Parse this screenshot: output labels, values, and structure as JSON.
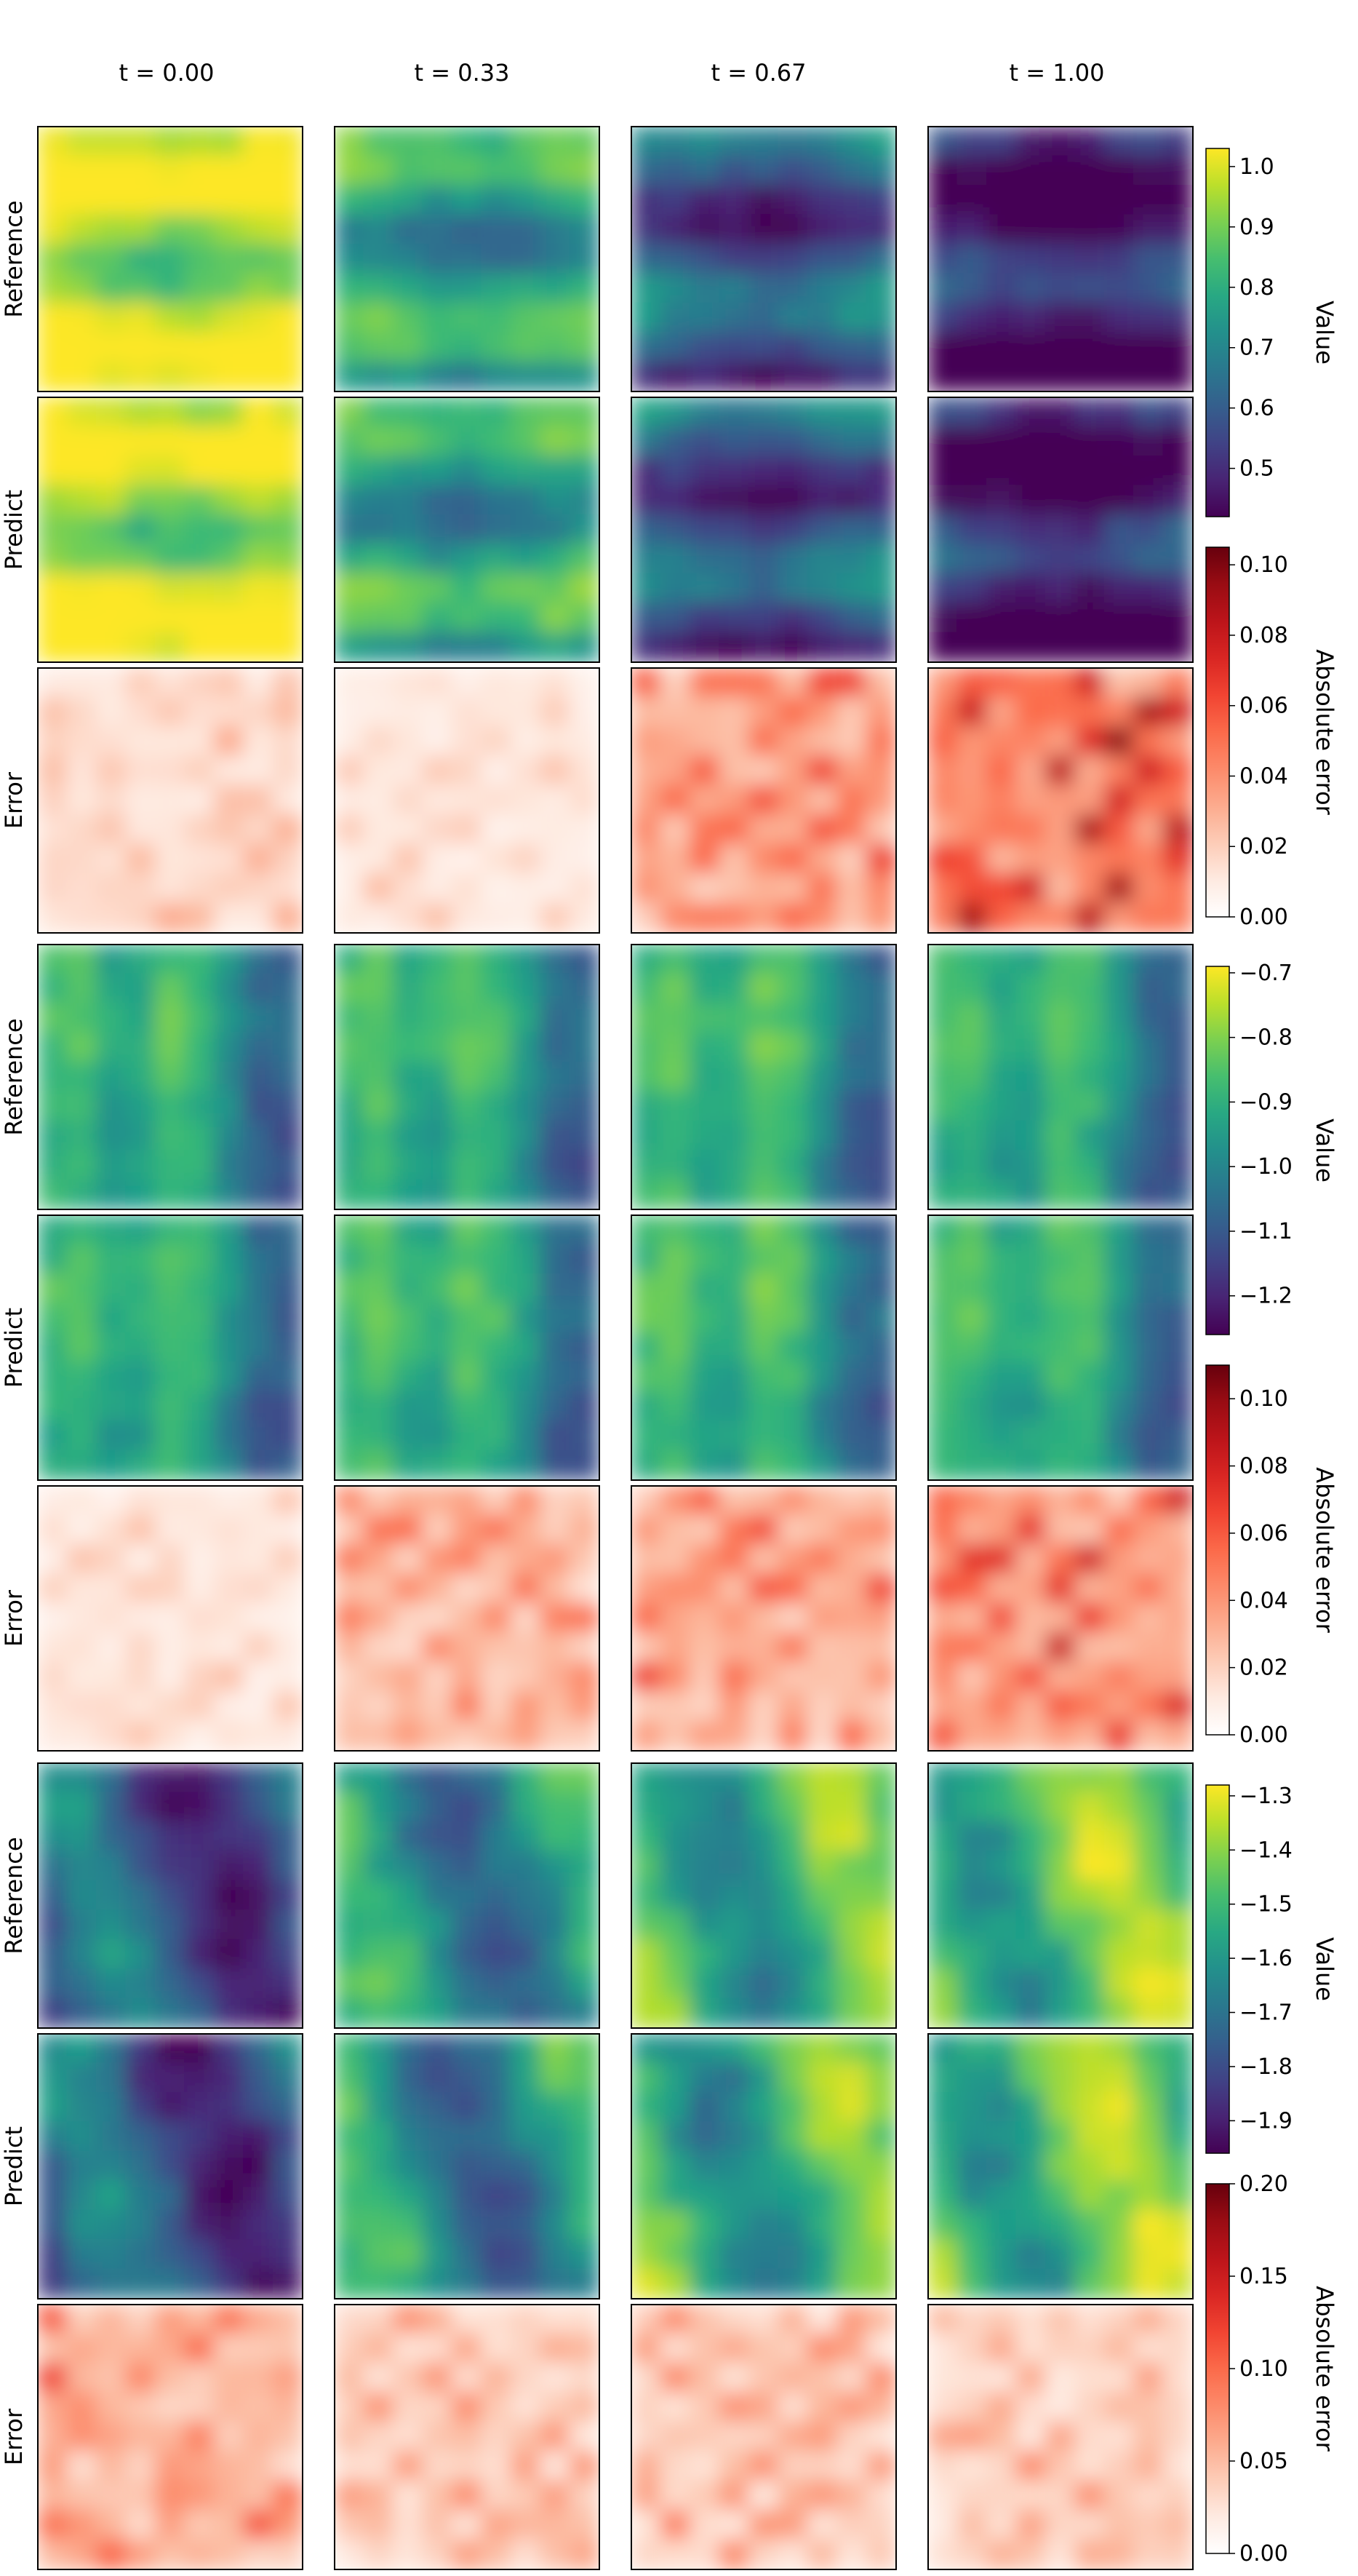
{
  "chart_data": {
    "type": "heatmap",
    "column_titles": [
      "t = 0.00",
      "t = 0.33",
      "t = 0.67",
      "t = 1.00"
    ],
    "row_labels": [
      "Reference",
      "Predict",
      "Error"
    ],
    "value_colormap": "viridis",
    "error_colormap": "Reds",
    "groups": [
      {
        "value_colorbar": {
          "label": "Value",
          "range": [
            0.42,
            1.03
          ],
          "ticks": [
            "0.5",
            "0.6",
            "0.7",
            "0.8",
            "0.9",
            "1.0"
          ]
        },
        "error_colorbar": {
          "label": "Absolute error",
          "range": [
            0.0,
            0.105
          ],
          "ticks": [
            "0.00",
            "0.02",
            "0.04",
            "0.06",
            "0.08",
            "0.10"
          ]
        },
        "time_means": [
          0.97,
          0.76,
          0.58,
          0.46
        ],
        "structure": "horizontal-bands",
        "error_levels": [
          0.02,
          0.015,
          0.04,
          0.06
        ]
      },
      {
        "value_colorbar": {
          "label": "Value",
          "range": [
            -1.26,
            -0.69
          ],
          "ticks": [
            "-1.2",
            "-1.1",
            "-1.0",
            "-0.9",
            "-0.8",
            "-0.7"
          ]
        },
        "error_colorbar": {
          "label": "Absolute error",
          "range": [
            0.0,
            0.11
          ],
          "ticks": [
            "0.00",
            "0.02",
            "0.04",
            "0.06",
            "0.08",
            "0.10"
          ]
        },
        "time_means": [
          -0.98,
          -0.97,
          -0.97,
          -0.98
        ],
        "structure": "vertical-bands",
        "error_levels": [
          0.015,
          0.035,
          0.04,
          0.05
        ]
      },
      {
        "value_colorbar": {
          "label": "Value",
          "range": [
            -1.96,
            -1.28
          ],
          "ticks": [
            "-1.9",
            "-1.8",
            "-1.7",
            "-1.6",
            "-1.5",
            "-1.4",
            "-1.3"
          ]
        },
        "error_colorbar": {
          "label": "Absolute error",
          "range": [
            0.0,
            0.2
          ],
          "ticks": [
            "0.00",
            "0.05",
            "0.10",
            "0.15",
            "0.20"
          ]
        },
        "time_means": [
          -1.78,
          -1.62,
          -1.52,
          -1.48
        ],
        "structure": "diagonal",
        "error_levels": [
          0.07,
          0.05,
          0.05,
          0.045
        ]
      }
    ]
  }
}
